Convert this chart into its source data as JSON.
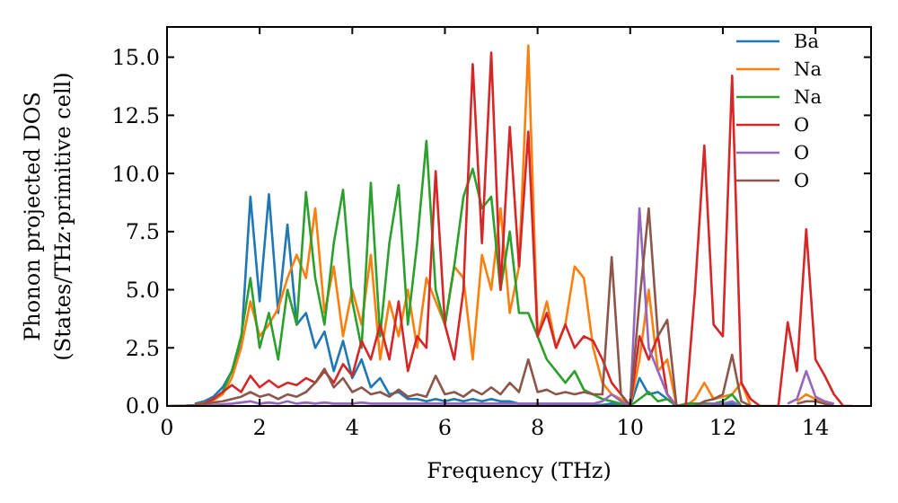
{
  "chart_data": {
    "type": "line",
    "xlabel": "Frequency (THz)",
    "ylabel": "Phonon projected DOS\n(States/THz·primitive cell)",
    "xlim": [
      0,
      15.2
    ],
    "ylim": [
      0,
      16.3
    ],
    "xticks": [
      0,
      2,
      4,
      6,
      8,
      10,
      12,
      14
    ],
    "yticks": [
      {
        "value": 0,
        "label": "0.0"
      },
      {
        "value": 2.5,
        "label": "2.5"
      },
      {
        "value": 5,
        "label": "5.0"
      },
      {
        "value": 7.5,
        "label": "7.5"
      },
      {
        "value": 10,
        "label": "10.0"
      },
      {
        "value": 12.5,
        "label": "12.5"
      },
      {
        "value": 15,
        "label": "15.0"
      }
    ],
    "grid": false,
    "legend": "top right",
    "marker": "none",
    "line_style": "solid",
    "x": [
      0,
      0.2,
      0.4,
      0.6,
      0.8,
      1,
      1.2,
      1.4,
      1.6,
      1.8,
      2,
      2.2,
      2.4,
      2.6,
      2.8,
      3,
      3.2,
      3.4,
      3.6,
      3.8,
      4,
      4.2,
      4.4,
      4.6,
      4.8,
      5,
      5.2,
      5.4,
      5.6,
      5.8,
      6,
      6.2,
      6.4,
      6.6,
      6.8,
      7,
      7.2,
      7.4,
      7.6,
      7.8,
      8,
      8.2,
      8.4,
      8.6,
      8.8,
      9,
      9.2,
      9.4,
      9.6,
      9.8,
      10,
      10.2,
      10.4,
      10.6,
      10.8,
      11,
      11.2,
      11.4,
      11.6,
      11.8,
      12,
      12.2,
      12.4,
      12.6,
      12.8,
      13,
      13.2,
      13.4,
      13.6,
      13.8,
      14,
      14.2,
      14.4,
      14.6,
      14.8
    ],
    "series": [
      {
        "name": "Ba",
        "color": "#1f77b4",
        "values": [
          null,
          null,
          null,
          0.1,
          0.2,
          0.4,
          0.8,
          1.5,
          2.6,
          9,
          4.5,
          9.1,
          4,
          7.8,
          3.5,
          4,
          2.5,
          3.2,
          1.5,
          2.8,
          1.2,
          2,
          0.8,
          1.2,
          0.5,
          0.6,
          0.3,
          0.3,
          0.2,
          0.3,
          0.2,
          0.3,
          0.2,
          0.3,
          0.2,
          0.3,
          0.2,
          0.2,
          0.1,
          0.1,
          0.1,
          0.1,
          0.05,
          0.05,
          0.05,
          0.05,
          0.05,
          0.05,
          0.1,
          0.05,
          0,
          1.2,
          0.5,
          0.6,
          0.3,
          0,
          0,
          0,
          0.05,
          0.1,
          0.05,
          0.1,
          0,
          null,
          null,
          null,
          null,
          null,
          null,
          null,
          null,
          null,
          null,
          null,
          null
        ]
      },
      {
        "name": "Na",
        "color": "#ff7f0e",
        "values": [
          null,
          null,
          null,
          0.06,
          0.12,
          0.25,
          0.5,
          1.2,
          2.5,
          4.5,
          3,
          3.5,
          4.2,
          5.5,
          6.5,
          5.5,
          8.5,
          4,
          6,
          3,
          5,
          3.5,
          6.5,
          2,
          4.5,
          3,
          5,
          2.5,
          5.5,
          4.5,
          3.5,
          6,
          5.5,
          2,
          6.5,
          5,
          8.5,
          4,
          6,
          15.5,
          3,
          4.5,
          2.5,
          3.5,
          6,
          5.5,
          2.5,
          1,
          0.5,
          0.3,
          0,
          2,
          5,
          1.5,
          2,
          0,
          0,
          0.3,
          1,
          0.3,
          0.4,
          0.5,
          1,
          0,
          null,
          null,
          null,
          null,
          0.2,
          0.5,
          0.3,
          0.1,
          0,
          null,
          null
        ]
      },
      {
        "name": "Na",
        "color": "#2ca02c",
        "values": [
          null,
          null,
          null,
          null,
          null,
          0.3,
          0.6,
          1.5,
          3,
          5.5,
          2.5,
          4,
          2,
          5,
          3.5,
          9.2,
          5.5,
          3.5,
          7,
          9.3,
          4.5,
          2.5,
          9.6,
          3,
          7,
          9.5,
          3.5,
          7,
          11.4,
          5,
          3.5,
          6,
          9,
          10.2,
          8.5,
          9,
          5,
          7.5,
          4,
          4,
          3,
          2,
          1.5,
          1,
          1.5,
          0.7,
          0.5,
          0.3,
          0.2,
          0.1,
          0,
          0.3,
          0.6,
          0.2,
          0.3,
          0,
          0.1,
          0.1,
          0.1,
          0.1,
          0.2,
          0.5,
          0,
          null,
          null,
          null,
          null,
          null,
          null,
          null,
          null,
          null,
          null,
          null,
          null
        ]
      },
      {
        "name": "O",
        "color": "#d62728",
        "values": [
          null,
          null,
          null,
          0.05,
          0.1,
          0.3,
          0.6,
          0.9,
          0.6,
          1.3,
          0.8,
          1.1,
          0.8,
          1,
          0.9,
          1.2,
          1,
          1.5,
          1,
          1.8,
          1.3,
          2.8,
          2,
          3.5,
          2,
          4.5,
          1.5,
          3,
          2.5,
          10.1,
          3.5,
          2,
          5,
          14.7,
          7,
          15.2,
          5,
          12,
          6,
          11.8,
          3,
          4,
          2.5,
          3.5,
          2.5,
          3,
          2.8,
          2,
          1,
          0.5,
          0,
          3,
          2,
          3,
          0.5,
          0,
          0,
          5,
          11.2,
          3.5,
          3,
          14.2,
          1,
          0.3,
          0,
          0,
          0,
          3.6,
          1.5,
          7.6,
          2,
          1.3,
          0.5,
          0,
          0
        ]
      },
      {
        "name": "O",
        "color": "#9467bd",
        "values": [
          null,
          null,
          null,
          0.02,
          0.03,
          0.05,
          0.08,
          0.1,
          0.15,
          0.2,
          0.1,
          0.15,
          0.1,
          0.2,
          0.1,
          0.15,
          0.1,
          0.15,
          0.1,
          0.1,
          0.1,
          0.15,
          0.1,
          0.1,
          0.1,
          0.1,
          0.1,
          0.1,
          0.1,
          0.1,
          0.1,
          0.1,
          0.1,
          0.1,
          0.1,
          0.1,
          0.1,
          0.1,
          0.1,
          0.1,
          0.1,
          0.1,
          0.1,
          0.1,
          0.1,
          0.1,
          0.1,
          0.2,
          0.5,
          0.2,
          0,
          8.5,
          2.5,
          1.5,
          0.5,
          0,
          0,
          0,
          0.05,
          0.1,
          0.1,
          0.2,
          0,
          null,
          null,
          null,
          null,
          0.1,
          0.3,
          1.5,
          0.4,
          0.2,
          0.1,
          null,
          null
        ]
      },
      {
        "name": "O",
        "color": "#8c564b",
        "values": [
          0,
          0.01,
          0.02,
          0.04,
          0.08,
          0.15,
          0.2,
          0.3,
          0.4,
          0.6,
          0.4,
          0.5,
          0.3,
          0.5,
          0.4,
          0.6,
          1,
          1.6,
          0.8,
          1.2,
          0.6,
          0.8,
          0.5,
          0.6,
          0.4,
          0.7,
          0.4,
          0.5,
          0.4,
          1.3,
          0.5,
          0.6,
          0.4,
          0.7,
          0.5,
          0.8,
          0.5,
          1,
          0.6,
          2,
          0.6,
          0.7,
          0.5,
          0.6,
          0.5,
          0.6,
          0.5,
          0.5,
          6.4,
          0.5,
          0,
          4.5,
          8.5,
          3,
          3.7,
          0,
          0,
          0,
          0.2,
          0.3,
          0.5,
          2.2,
          0.2,
          0,
          null,
          null,
          null,
          null,
          0.1,
          0.2,
          0.2,
          0.1,
          0,
          null,
          null
        ]
      }
    ]
  }
}
